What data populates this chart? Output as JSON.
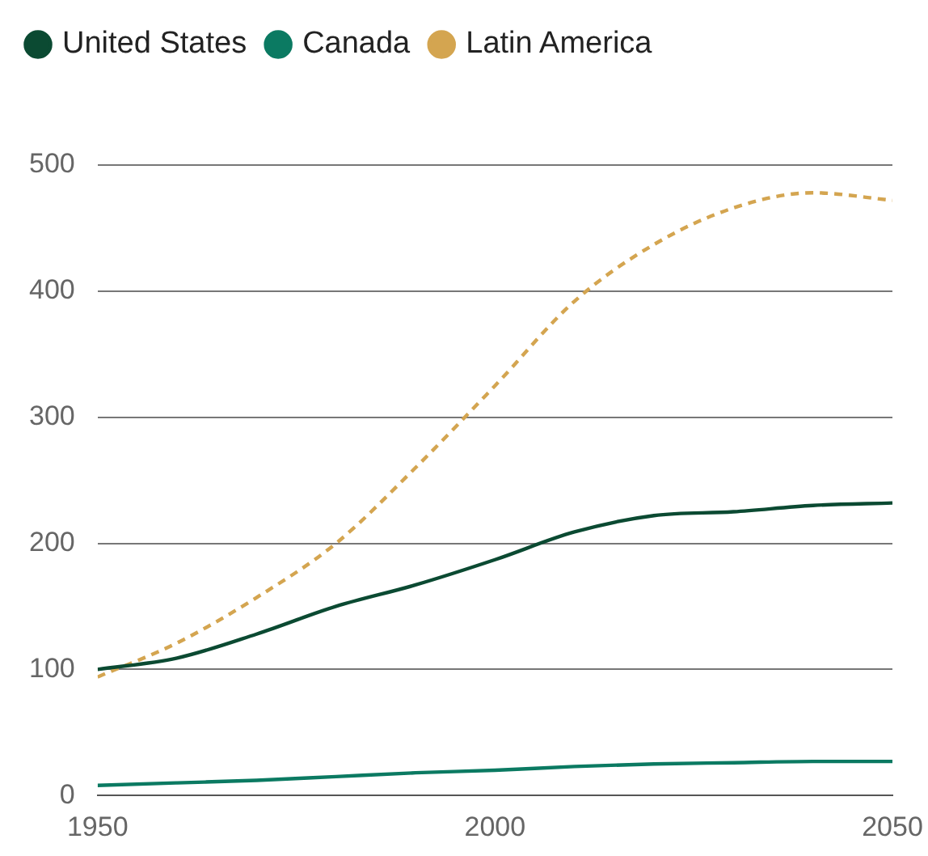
{
  "chart_data": {
    "type": "line",
    "x": [
      1950,
      1960,
      1970,
      1980,
      1990,
      2000,
      2010,
      2020,
      2030,
      2040,
      2050
    ],
    "series": [
      {
        "name": "United States",
        "color": "#0b4a32",
        "values": [
          100,
          109,
          128,
          150,
          167,
          187,
          209,
          222,
          225,
          230,
          232
        ]
      },
      {
        "name": "Canada",
        "color": "#0b7a62",
        "values": [
          8,
          10,
          12,
          15,
          18,
          20,
          23,
          25,
          26,
          27,
          27
        ]
      },
      {
        "name": "Latin America",
        "color": "#d4a550",
        "line_style": "dashed",
        "values": [
          94,
          121,
          157,
          200,
          260,
          325,
          392,
          437,
          466,
          478,
          472
        ]
      }
    ],
    "xlim": [
      1950,
      2050
    ],
    "xticks": [
      1950,
      2000,
      2050
    ],
    "ylim": [
      0,
      500
    ],
    "yticks": [
      0,
      100,
      200,
      300,
      400,
      500
    ],
    "grid": "y",
    "legend": "top left",
    "marker": "none"
  }
}
